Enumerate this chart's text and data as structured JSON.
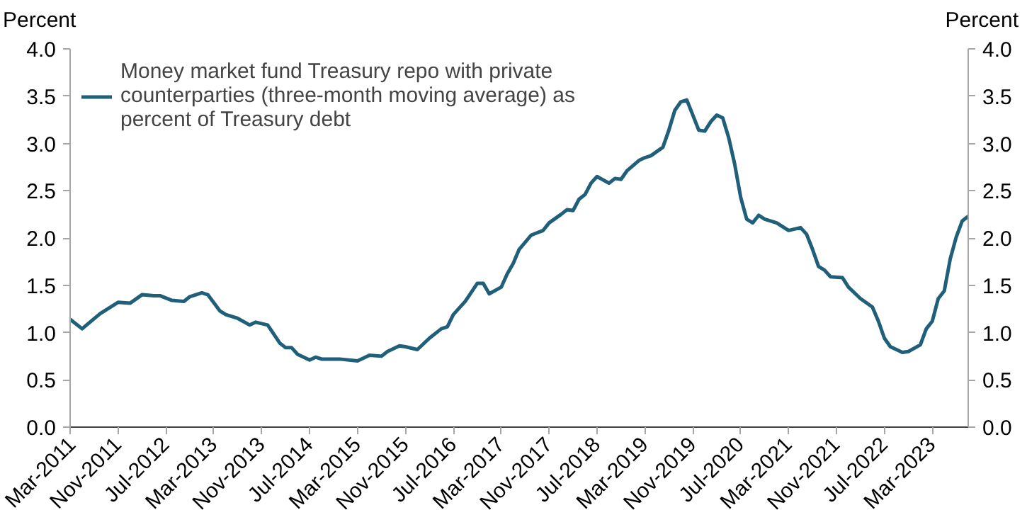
{
  "chart_data": {
    "type": "line",
    "ylabel": "Percent",
    "y2label": "Percent",
    "xlim": [
      "2011-03",
      "2023-09"
    ],
    "xticks": [
      {
        "value": "2011-03",
        "label": "Mar-2011"
      },
      {
        "value": "2011-11",
        "label": "Nov-2011"
      },
      {
        "value": "2012-07",
        "label": "Jul-2012"
      },
      {
        "value": "2013-03",
        "label": "Mar-2013"
      },
      {
        "value": "2013-11",
        "label": "Nov-2013"
      },
      {
        "value": "2014-07",
        "label": "Jul-2014"
      },
      {
        "value": "2015-03",
        "label": "Mar-2015"
      },
      {
        "value": "2015-11",
        "label": "Nov-2015"
      },
      {
        "value": "2016-07",
        "label": "Jul-2016"
      },
      {
        "value": "2017-03",
        "label": "Mar-2017"
      },
      {
        "value": "2017-11",
        "label": "Nov-2017"
      },
      {
        "value": "2018-07",
        "label": "Jul-2018"
      },
      {
        "value": "2019-03",
        "label": "Mar-2019"
      },
      {
        "value": "2019-11",
        "label": "Nov-2019"
      },
      {
        "value": "2020-07",
        "label": "Jul-2020"
      },
      {
        "value": "2021-03",
        "label": "Mar-2021"
      },
      {
        "value": "2021-11",
        "label": "Nov-2021"
      },
      {
        "value": "2022-07",
        "label": "Jul-2022"
      },
      {
        "value": "2023-03",
        "label": "Mar-2023"
      }
    ],
    "ylim": [
      0,
      4
    ],
    "yticks": [
      {
        "value": 0,
        "label": "0.0"
      },
      {
        "value": 0.5,
        "label": "0.5"
      },
      {
        "value": 1,
        "label": "1.0"
      },
      {
        "value": 1.5,
        "label": "1.5"
      },
      {
        "value": 2,
        "label": "2.0"
      },
      {
        "value": 2.5,
        "label": "2.5"
      },
      {
        "value": 3,
        "label": "3.0"
      },
      {
        "value": 3.5,
        "label": "3.5"
      },
      {
        "value": 4,
        "label": "4.0"
      }
    ],
    "y2lim": [
      0,
      4
    ],
    "y2ticks": [
      {
        "value": 0,
        "label": "0.0"
      },
      {
        "value": 0.5,
        "label": "0.5"
      },
      {
        "value": 1,
        "label": "1.0"
      },
      {
        "value": 1.5,
        "label": "1.5"
      },
      {
        "value": 2,
        "label": "2.0"
      },
      {
        "value": 2.5,
        "label": "2.5"
      },
      {
        "value": 3,
        "label": "3.0"
      },
      {
        "value": 3.5,
        "label": "3.5"
      },
      {
        "value": 4,
        "label": "4.0"
      }
    ],
    "grid": false,
    "legend": "top left",
    "marker": "none",
    "line_style": "solid",
    "series": [
      {
        "name": "Money market fund Treasury repo with private counterparties (three-month moving average) as percent of Treasury debt",
        "color": "#1f5f7a",
        "x": [
          "2011-03",
          "2011-05",
          "2011-08",
          "2011-11",
          "2012-01",
          "2012-03",
          "2012-05",
          "2012-06",
          "2012-08",
          "2012-10",
          "2012-11",
          "2013-01",
          "2013-02",
          "2013-04",
          "2013-05",
          "2013-07",
          "2013-09",
          "2013-10",
          "2013-12",
          "2014-02",
          "2014-03",
          "2014-04",
          "2014-05",
          "2014-06",
          "2014-07",
          "2014-08",
          "2014-09",
          "2014-12",
          "2015-03",
          "2015-05",
          "2015-07",
          "2015-08",
          "2015-10",
          "2015-11",
          "2016-01",
          "2016-03",
          "2016-05",
          "2016-06",
          "2016-07",
          "2016-09",
          "2016-11",
          "2016-12",
          "2017-01",
          "2017-03",
          "2017-04",
          "2017-05",
          "2017-06",
          "2017-08",
          "2017-10",
          "2017-11",
          "2018-01",
          "2018-02",
          "2018-03",
          "2018-04",
          "2018-05",
          "2018-06",
          "2018-07",
          "2018-09",
          "2018-10",
          "2018-11",
          "2018-12",
          "2019-02",
          "2019-03",
          "2019-04",
          "2019-06",
          "2019-07",
          "2019-08",
          "2019-09",
          "2019-10",
          "2019-11",
          "2019-12",
          "2020-01",
          "2020-02",
          "2020-03",
          "2020-04",
          "2020-05",
          "2020-06",
          "2020-07",
          "2020-08",
          "2020-09",
          "2020-10",
          "2020-11",
          "2021-01",
          "2021-03",
          "2021-05",
          "2021-06",
          "2021-07",
          "2021-08",
          "2021-09",
          "2021-10",
          "2021-12",
          "2022-01",
          "2022-03",
          "2022-05",
          "2022-06",
          "2022-07",
          "2022-08",
          "2022-10",
          "2022-11",
          "2023-01",
          "2023-02",
          "2023-03",
          "2023-04",
          "2023-05",
          "2023-06",
          "2023-07",
          "2023-08",
          "2023-09"
        ],
        "values": [
          1.14,
          1.04,
          1.2,
          1.32,
          1.31,
          1.4,
          1.39,
          1.39,
          1.34,
          1.33,
          1.38,
          1.42,
          1.4,
          1.23,
          1.19,
          1.15,
          1.08,
          1.11,
          1.08,
          0.89,
          0.84,
          0.84,
          0.77,
          0.74,
          0.71,
          0.74,
          0.72,
          0.72,
          0.7,
          0.76,
          0.75,
          0.8,
          0.86,
          0.85,
          0.82,
          0.94,
          1.04,
          1.06,
          1.19,
          1.33,
          1.52,
          1.52,
          1.41,
          1.48,
          1.62,
          1.73,
          1.88,
          2.03,
          2.08,
          2.16,
          2.25,
          2.3,
          2.29,
          2.41,
          2.46,
          2.58,
          2.65,
          2.58,
          2.63,
          2.62,
          2.71,
          2.82,
          2.85,
          2.87,
          2.96,
          3.14,
          3.35,
          3.44,
          3.46,
          3.3,
          3.14,
          3.13,
          3.23,
          3.3,
          3.27,
          3.06,
          2.78,
          2.43,
          2.2,
          2.16,
          2.24,
          2.2,
          2.16,
          2.08,
          2.11,
          2.04,
          1.88,
          1.7,
          1.66,
          1.59,
          1.58,
          1.48,
          1.36,
          1.27,
          1.12,
          0.94,
          0.85,
          0.79,
          0.8,
          0.87,
          1.04,
          1.12,
          1.36,
          1.44,
          1.78,
          2.01,
          2.18,
          2.23
        ]
      }
    ]
  }
}
